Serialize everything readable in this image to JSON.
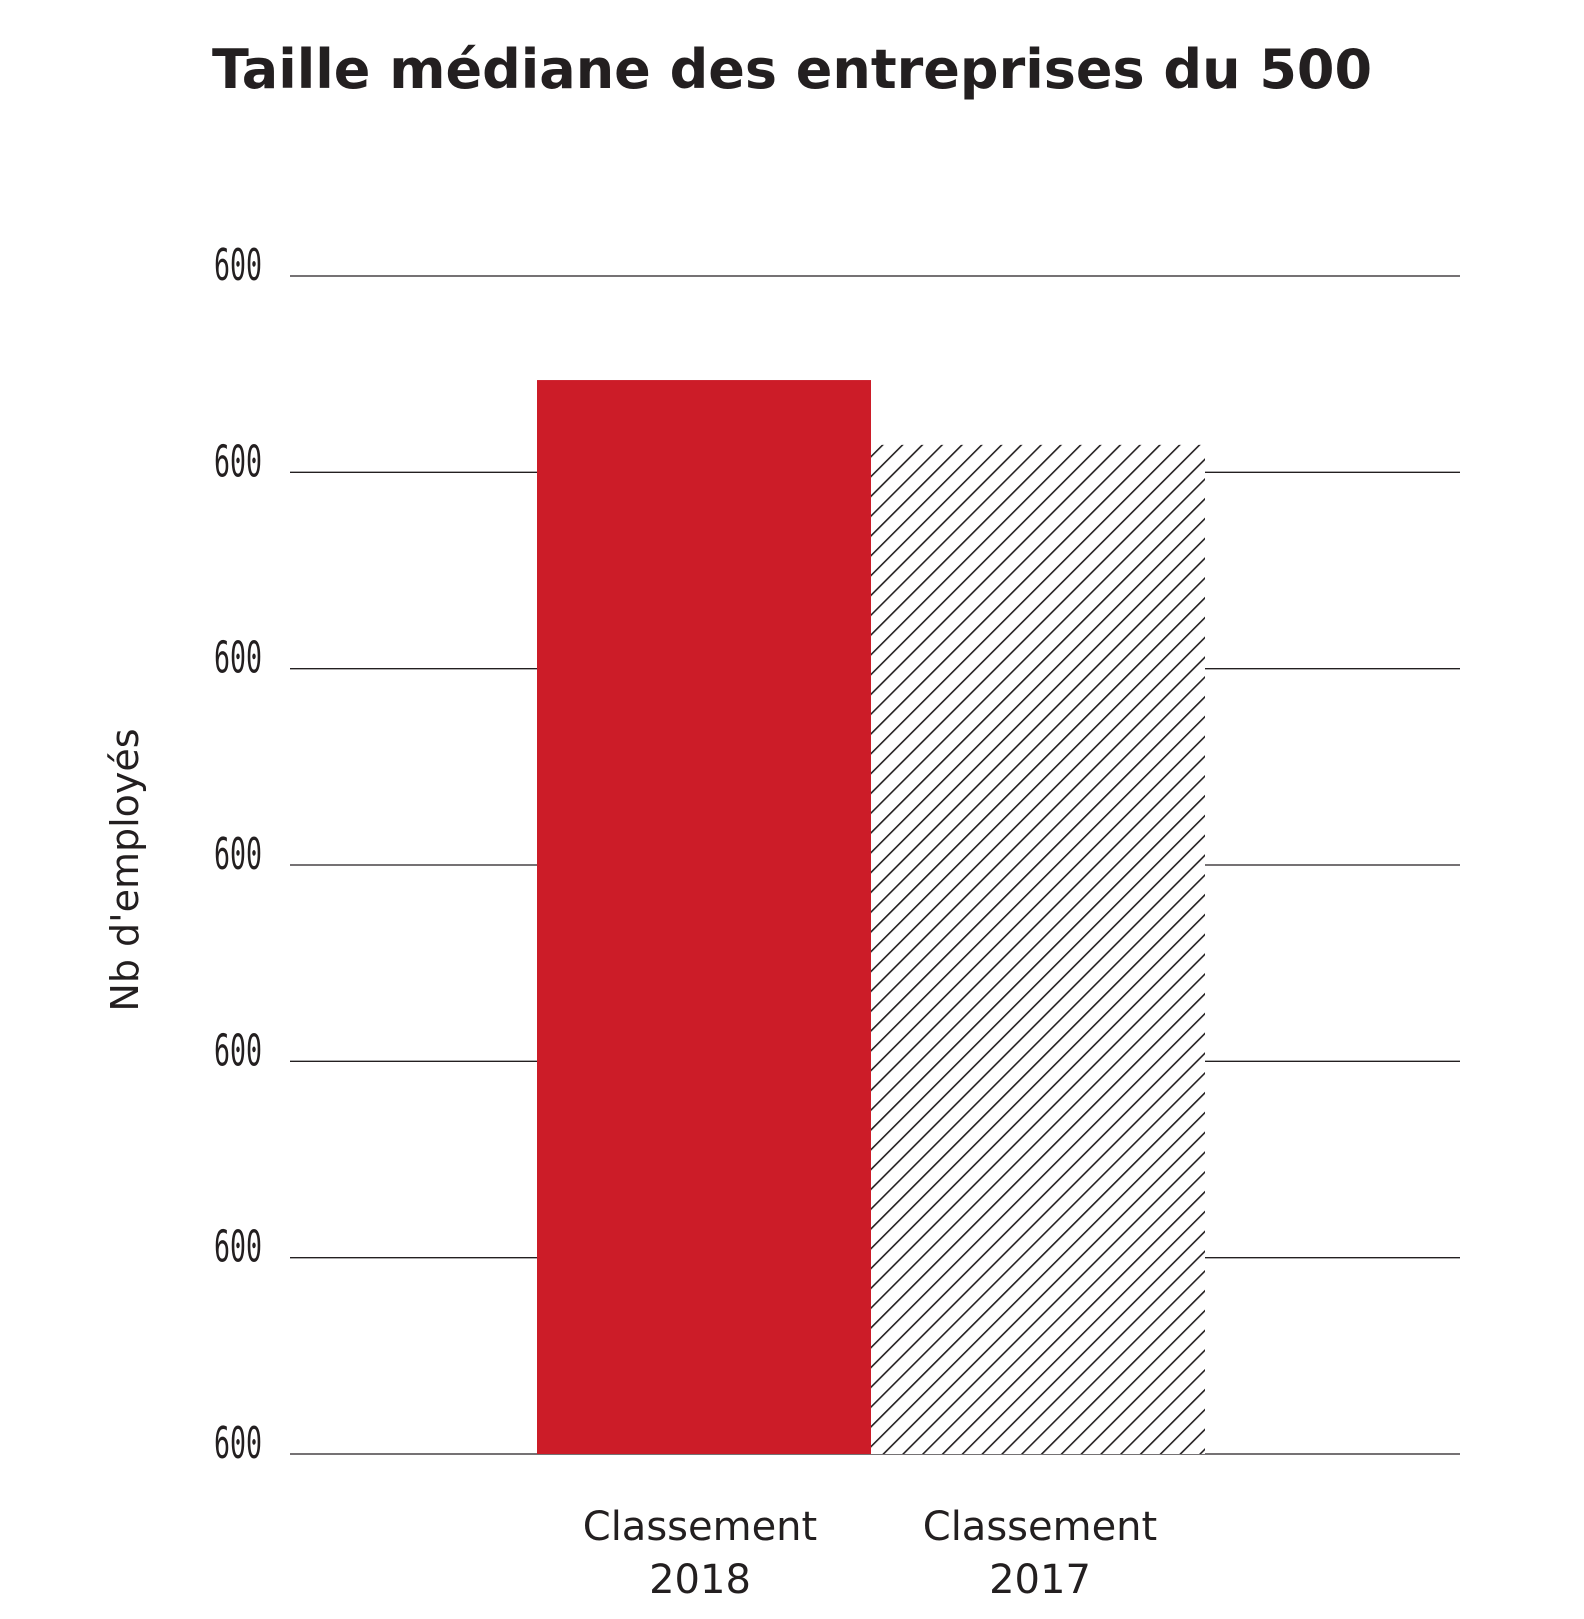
{
  "chart_data": {
    "type": "bar",
    "title": "Taille médiane des entreprises du 500",
    "ylabel": "Nb d'employés",
    "xlabel": "",
    "y_tick_labels": [
      "600",
      "600",
      "600",
      "600",
      "600",
      "600",
      "600"
    ],
    "ylim": [
      0,
      6
    ],
    "grid": true,
    "categories": [
      {
        "line1": "Classement",
        "line2": "2018"
      },
      {
        "line1": "Classement",
        "line2": "2017"
      }
    ],
    "values": [
      5.47,
      5.14
    ],
    "bar_styles": [
      "solid",
      "hatched"
    ],
    "colors": {
      "bar_2018": "#cc1c28",
      "hatch": "#231f20",
      "grid": "#231f20",
      "text": "#231f20"
    }
  }
}
